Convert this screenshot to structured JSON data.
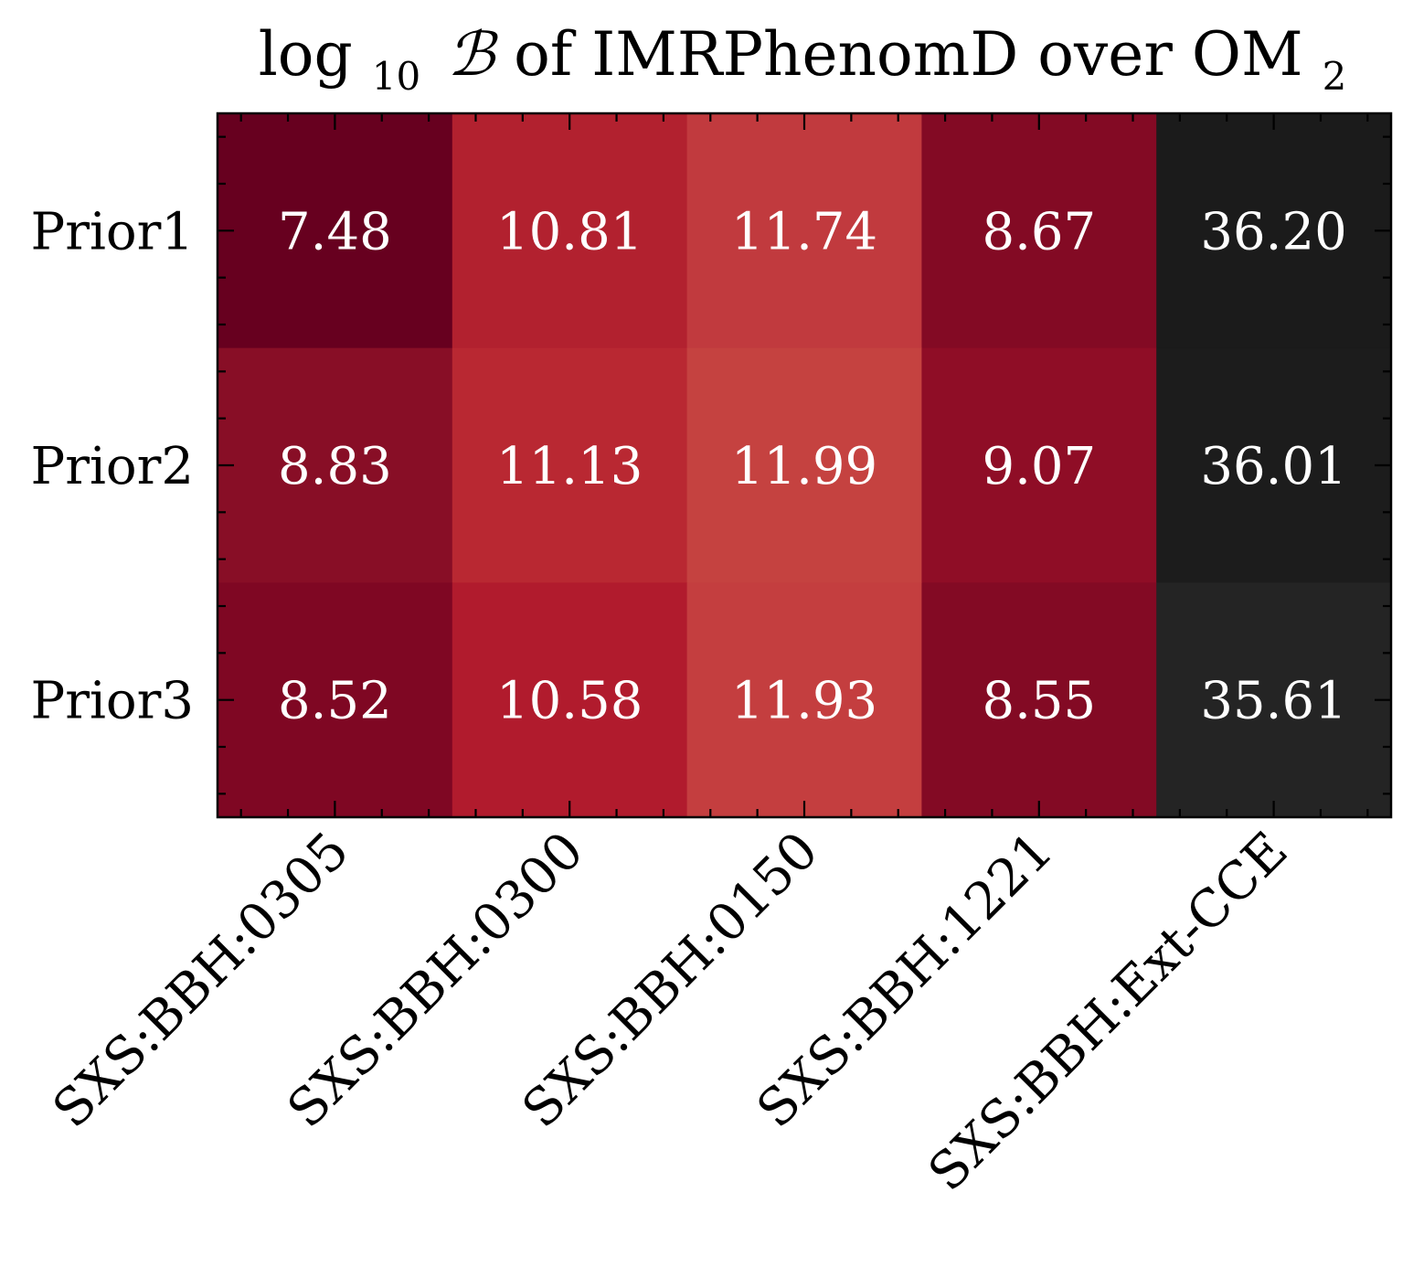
{
  "chart_data": {
    "type": "heatmap",
    "title": {
      "prefix": "log",
      "prefix_sub": "10",
      "symbol": "ℬ",
      "text": " of IMRPhenomD over OM",
      "suffix_sub": "2"
    },
    "xlabel": "",
    "ylabel": "",
    "x_categories": [
      "SXS:BBH:0305",
      "SXS:BBH:0300",
      "SXS:BBH:0150",
      "SXS:BBH:1221",
      "SXS:BBH:Ext-CCE"
    ],
    "y_categories": [
      "Prior1",
      "Prior2",
      "Prior3"
    ],
    "values": [
      [
        7.48,
        10.81,
        11.74,
        8.67,
        36.2
      ],
      [
        8.83,
        11.13,
        11.99,
        9.07,
        36.01
      ],
      [
        8.52,
        10.58,
        11.93,
        8.55,
        35.61
      ]
    ],
    "labels": [
      [
        "7.48",
        "10.81",
        "11.74",
        "8.67",
        "36.20"
      ],
      [
        "8.83",
        "11.13",
        "11.99",
        "9.07",
        "36.01"
      ],
      [
        "8.52",
        "10.58",
        "11.93",
        "8.55",
        "35.61"
      ]
    ],
    "colormap": "RdGy",
    "colors": [
      [
        "#67001f",
        "#b2212f",
        "#c13a3e",
        "#830a24",
        "#1b1b1b"
      ],
      [
        "#880e26",
        "#b92832",
        "#c54240",
        "#8f0d26",
        "#1c1c1c"
      ],
      [
        "#7f0723",
        "#b11b2d",
        "#c43e3f",
        "#830a24",
        "#242424"
      ]
    ],
    "legend": "none",
    "grid": false
  }
}
